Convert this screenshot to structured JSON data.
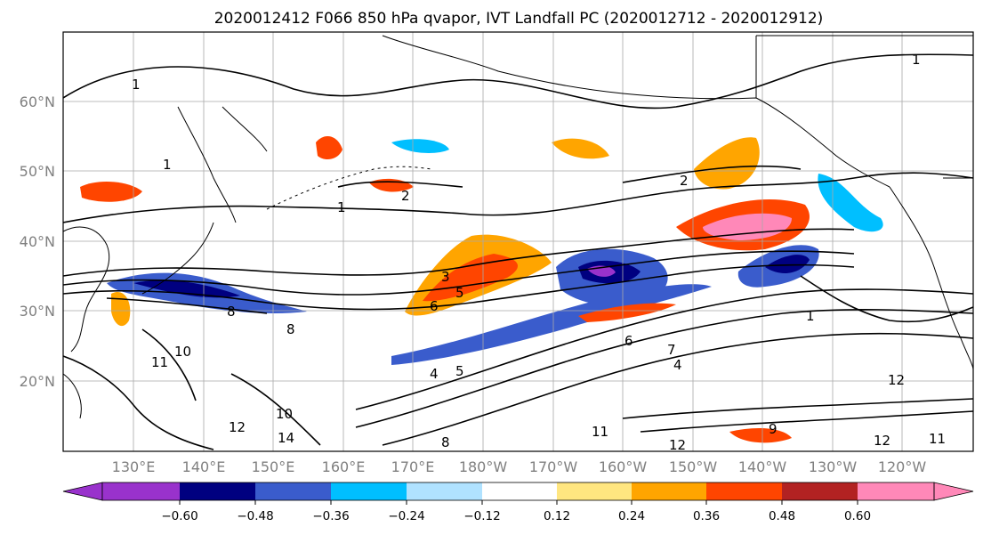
{
  "title": "2020012412 F066 850 hPa qvapor, IVT Landfall PC (2020012712 - 2020012912)",
  "lat_labels": [
    "60°N",
    "50°N",
    "40°N",
    "30°N",
    "20°N"
  ],
  "lon_labels": [
    "130°E",
    "140°E",
    "150°E",
    "160°E",
    "170°E",
    "180°W",
    "170°W",
    "160°W",
    "150°W",
    "140°W",
    "130°W",
    "120°W"
  ],
  "colorbar": {
    "colors": [
      "#9932cc",
      "#000080",
      "#3a5ccc",
      "#00bfff",
      "#b0e2ff",
      "#ffffff",
      "#ffe680",
      "#ffa500",
      "#ff4500",
      "#b22222",
      "#ff88b8"
    ],
    "tick_labels": [
      "−0.60",
      "−0.48",
      "−0.36",
      "−0.24",
      "−0.12",
      "0.12",
      "0.24",
      "0.36",
      "0.48",
      "0.60"
    ]
  },
  "contour_labels": [
    "1",
    "1",
    "2",
    "2",
    "3",
    "5",
    "6",
    "8",
    "8",
    "10",
    "11",
    "12",
    "14",
    "11",
    "12",
    "1",
    "4",
    "5",
    "7",
    "6",
    "4",
    "10",
    "12",
    "12",
    "11",
    "9",
    "8",
    "1",
    "1"
  ]
}
